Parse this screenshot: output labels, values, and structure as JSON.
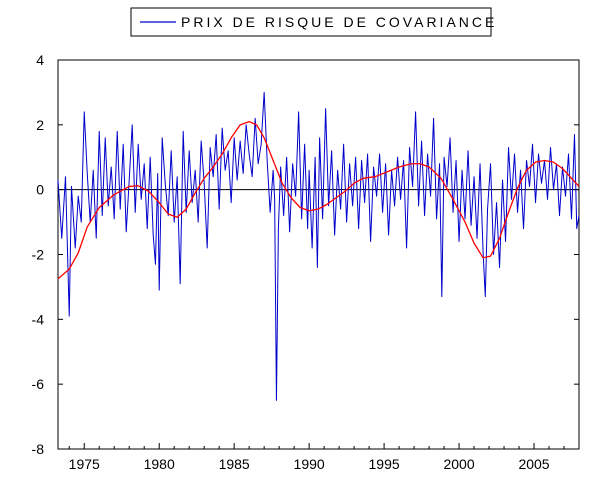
{
  "chart_data": {
    "type": "line",
    "title": "",
    "xlabel": "",
    "ylabel": "",
    "xlim": [
      1973.25,
      2008.0
    ],
    "ylim": [
      -8,
      4
    ],
    "yticks": [
      4,
      2,
      0,
      -2,
      -4,
      -6,
      -8
    ],
    "xticks": [
      1975,
      1980,
      1985,
      1990,
      1995,
      2000,
      2005
    ],
    "grid": false,
    "zero_line": true,
    "legend": {
      "placement": "top-center",
      "border": true
    },
    "series": [
      {
        "name": "PRIX DE RISQUE DE COVARIANCE",
        "color": "#0000cc",
        "points": [
          [
            1973.25,
            0.3
          ],
          [
            1973.5,
            -1.5
          ],
          [
            1973.75,
            0.4
          ],
          [
            1974.0,
            -3.9
          ],
          [
            1974.15,
            0.1
          ],
          [
            1974.4,
            -1.8
          ],
          [
            1974.6,
            -0.2
          ],
          [
            1974.8,
            -1.0
          ],
          [
            1975.0,
            2.4
          ],
          [
            1975.2,
            0.5
          ],
          [
            1975.4,
            -1.0
          ],
          [
            1975.6,
            0.6
          ],
          [
            1975.8,
            -1.5
          ],
          [
            1976.0,
            1.8
          ],
          [
            1976.2,
            -0.8
          ],
          [
            1976.4,
            1.6
          ],
          [
            1976.6,
            -0.5
          ],
          [
            1976.8,
            0.7
          ],
          [
            1977.0,
            -0.9
          ],
          [
            1977.2,
            1.8
          ],
          [
            1977.4,
            -0.6
          ],
          [
            1977.6,
            1.4
          ],
          [
            1977.8,
            -1.3
          ],
          [
            1978.0,
            0.3
          ],
          [
            1978.2,
            2.0
          ],
          [
            1978.4,
            -0.7
          ],
          [
            1978.6,
            1.4
          ],
          [
            1978.8,
            -0.3
          ],
          [
            1979.0,
            0.8
          ],
          [
            1979.2,
            -1.2
          ],
          [
            1979.4,
            1.0
          ],
          [
            1979.6,
            -1.4
          ],
          [
            1979.75,
            -2.3
          ],
          [
            1979.9,
            0.5
          ],
          [
            1980.0,
            -3.1
          ],
          [
            1980.2,
            1.6
          ],
          [
            1980.4,
            0.2
          ],
          [
            1980.6,
            -0.8
          ],
          [
            1980.8,
            1.2
          ],
          [
            1981.0,
            -1.0
          ],
          [
            1981.2,
            0.4
          ],
          [
            1981.4,
            -2.9
          ],
          [
            1981.6,
            1.8
          ],
          [
            1981.8,
            -0.7
          ],
          [
            1982.0,
            1.2
          ],
          [
            1982.2,
            -0.4
          ],
          [
            1982.4,
            0.6
          ],
          [
            1982.6,
            -1.0
          ],
          [
            1982.8,
            1.5
          ],
          [
            1983.0,
            0.2
          ],
          [
            1983.2,
            -1.8
          ],
          [
            1983.4,
            1.3
          ],
          [
            1983.6,
            0.4
          ],
          [
            1983.8,
            1.7
          ],
          [
            1984.0,
            -0.6
          ],
          [
            1984.2,
            1.9
          ],
          [
            1984.4,
            0.6
          ],
          [
            1984.6,
            1.2
          ],
          [
            1984.8,
            -0.4
          ],
          [
            1985.0,
            1.6
          ],
          [
            1985.2,
            0.3
          ],
          [
            1985.4,
            1.5
          ],
          [
            1985.6,
            0.5
          ],
          [
            1985.8,
            2.0
          ],
          [
            1986.0,
            1.1
          ],
          [
            1986.2,
            0.4
          ],
          [
            1986.4,
            2.2
          ],
          [
            1986.6,
            0.8
          ],
          [
            1986.8,
            1.4
          ],
          [
            1987.0,
            3.0
          ],
          [
            1987.2,
            0.9
          ],
          [
            1987.4,
            -0.7
          ],
          [
            1987.6,
            0.6
          ],
          [
            1987.7,
            -0.3
          ],
          [
            1987.82,
            -6.5
          ],
          [
            1987.95,
            -1.2
          ],
          [
            1988.1,
            0.7
          ],
          [
            1988.3,
            -0.8
          ],
          [
            1988.5,
            1.0
          ],
          [
            1988.7,
            -1.3
          ],
          [
            1988.9,
            0.8
          ],
          [
            1989.1,
            -0.2
          ],
          [
            1989.3,
            2.4
          ],
          [
            1989.5,
            -0.9
          ],
          [
            1989.7,
            1.4
          ],
          [
            1989.9,
            -1.2
          ],
          [
            1990.0,
            0.6
          ],
          [
            1990.2,
            -1.8
          ],
          [
            1990.4,
            1.0
          ],
          [
            1990.55,
            -2.4
          ],
          [
            1990.7,
            1.6
          ],
          [
            1990.9,
            -0.9
          ],
          [
            1991.1,
            2.5
          ],
          [
            1991.3,
            -0.5
          ],
          [
            1991.5,
            1.2
          ],
          [
            1991.7,
            -1.4
          ],
          [
            1991.9,
            0.6
          ],
          [
            1992.1,
            -0.6
          ],
          [
            1992.3,
            1.4
          ],
          [
            1992.5,
            -1.0
          ],
          [
            1992.7,
            0.8
          ],
          [
            1992.9,
            -0.5
          ],
          [
            1993.1,
            1.0
          ],
          [
            1993.3,
            -1.2
          ],
          [
            1993.5,
            0.9
          ],
          [
            1993.7,
            -0.4
          ],
          [
            1993.9,
            1.1
          ],
          [
            1994.1,
            -1.6
          ],
          [
            1994.3,
            0.7
          ],
          [
            1994.5,
            -0.2
          ],
          [
            1994.7,
            1.1
          ],
          [
            1994.9,
            -0.7
          ],
          [
            1995.1,
            0.8
          ],
          [
            1995.3,
            -1.4
          ],
          [
            1995.5,
            0.6
          ],
          [
            1995.7,
            -0.5
          ],
          [
            1995.9,
            1.0
          ],
          [
            1996.1,
            -0.3
          ],
          [
            1996.3,
            0.9
          ],
          [
            1996.5,
            -1.8
          ],
          [
            1996.7,
            1.3
          ],
          [
            1996.9,
            0.1
          ],
          [
            1997.1,
            2.4
          ],
          [
            1997.3,
            -0.5
          ],
          [
            1997.5,
            1.5
          ],
          [
            1997.7,
            -0.8
          ],
          [
            1997.9,
            1.1
          ],
          [
            1998.1,
            -0.2
          ],
          [
            1998.3,
            2.2
          ],
          [
            1998.5,
            -0.9
          ],
          [
            1998.7,
            0.8
          ],
          [
            1998.85,
            -3.3
          ],
          [
            1999.0,
            1.0
          ],
          [
            1999.2,
            0.1
          ],
          [
            1999.4,
            1.6
          ],
          [
            1999.6,
            -0.7
          ],
          [
            1999.8,
            0.9
          ],
          [
            2000.0,
            -1.6
          ],
          [
            2000.2,
            0.6
          ],
          [
            2000.4,
            -0.9
          ],
          [
            2000.6,
            1.2
          ],
          [
            2000.8,
            -1.1
          ],
          [
            2001.0,
            0.4
          ],
          [
            2001.2,
            -1.5
          ],
          [
            2001.4,
            0.8
          ],
          [
            2001.6,
            -1.9
          ],
          [
            2001.75,
            -3.3
          ],
          [
            2001.9,
            -0.6
          ],
          [
            2002.1,
            0.8
          ],
          [
            2002.3,
            -2.0
          ],
          [
            2002.5,
            -0.4
          ],
          [
            2002.7,
            -2.4
          ],
          [
            2002.9,
            0.3
          ],
          [
            2003.1,
            -1.6
          ],
          [
            2003.3,
            1.3
          ],
          [
            2003.5,
            -0.3
          ],
          [
            2003.7,
            1.1
          ],
          [
            2003.9,
            -0.7
          ],
          [
            2004.1,
            0.6
          ],
          [
            2004.3,
            -1.2
          ],
          [
            2004.5,
            0.9
          ],
          [
            2004.7,
            0.1
          ],
          [
            2004.9,
            1.4
          ],
          [
            2005.1,
            -0.4
          ],
          [
            2005.3,
            1.1
          ],
          [
            2005.5,
            0.2
          ],
          [
            2005.7,
            0.9
          ],
          [
            2005.9,
            -0.3
          ],
          [
            2006.1,
            1.3
          ],
          [
            2006.3,
            0.0
          ],
          [
            2006.5,
            0.8
          ],
          [
            2006.7,
            -0.8
          ],
          [
            2006.9,
            0.7
          ],
          [
            2007.1,
            -0.2
          ],
          [
            2007.3,
            1.1
          ],
          [
            2007.5,
            -0.9
          ],
          [
            2007.7,
            1.7
          ],
          [
            2007.85,
            -1.2
          ],
          [
            2008.0,
            -0.8
          ]
        ]
      },
      {
        "name": "",
        "color": "#ff0000",
        "points": [
          [
            1973.25,
            -2.75
          ],
          [
            1974.0,
            -2.45
          ],
          [
            1974.6,
            -1.95
          ],
          [
            1975.2,
            -1.15
          ],
          [
            1976.0,
            -0.55
          ],
          [
            1977.0,
            -0.15
          ],
          [
            1978.0,
            0.1
          ],
          [
            1978.6,
            0.12
          ],
          [
            1979.3,
            -0.05
          ],
          [
            1980.0,
            -0.4
          ],
          [
            1980.6,
            -0.75
          ],
          [
            1981.2,
            -0.85
          ],
          [
            1981.8,
            -0.6
          ],
          [
            1982.4,
            -0.1
          ],
          [
            1983.0,
            0.35
          ],
          [
            1983.6,
            0.7
          ],
          [
            1984.2,
            1.1
          ],
          [
            1984.8,
            1.6
          ],
          [
            1985.4,
            2.0
          ],
          [
            1986.0,
            2.1
          ],
          [
            1986.5,
            2.0
          ],
          [
            1987.0,
            1.6
          ],
          [
            1987.6,
            0.9
          ],
          [
            1988.2,
            0.2
          ],
          [
            1988.8,
            -0.25
          ],
          [
            1989.4,
            -0.55
          ],
          [
            1990.0,
            -0.65
          ],
          [
            1990.6,
            -0.6
          ],
          [
            1991.2,
            -0.45
          ],
          [
            1991.8,
            -0.25
          ],
          [
            1992.4,
            -0.05
          ],
          [
            1993.0,
            0.2
          ],
          [
            1993.6,
            0.35
          ],
          [
            1994.4,
            0.4
          ],
          [
            1995.2,
            0.55
          ],
          [
            1996.0,
            0.7
          ],
          [
            1996.8,
            0.8
          ],
          [
            1997.4,
            0.8
          ],
          [
            1998.0,
            0.7
          ],
          [
            1998.8,
            0.35
          ],
          [
            1999.6,
            -0.3
          ],
          [
            2000.4,
            -1.0
          ],
          [
            2001.0,
            -1.65
          ],
          [
            2001.6,
            -2.1
          ],
          [
            2002.1,
            -2.05
          ],
          [
            2002.7,
            -1.5
          ],
          [
            2003.3,
            -0.7
          ],
          [
            2003.9,
            0.05
          ],
          [
            2004.5,
            0.6
          ],
          [
            2005.1,
            0.85
          ],
          [
            2005.7,
            0.9
          ],
          [
            2006.3,
            0.85
          ],
          [
            2006.9,
            0.65
          ],
          [
            2007.5,
            0.35
          ],
          [
            2008.0,
            0.1
          ]
        ]
      }
    ]
  }
}
